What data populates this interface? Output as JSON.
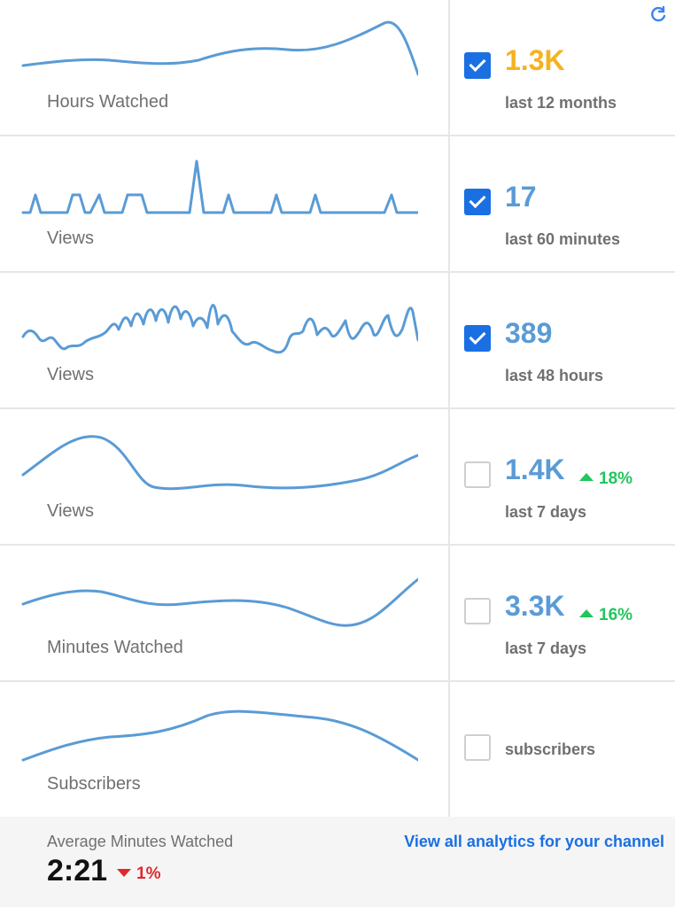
{
  "colors": {
    "accent_blue": "#5a9bd5",
    "highlight_gold": "#f5b21f",
    "checkbox_blue": "#1a6fe3",
    "positive_green": "#22c55e",
    "negative_red": "#e0282e",
    "link_blue": "#1a6fe3"
  },
  "header": {
    "refresh_icon": "refresh-icon"
  },
  "metrics": [
    {
      "label": "Hours Watched",
      "value": "1.3K",
      "period": "last 12 months",
      "checked": true,
      "change": ""
    },
    {
      "label": "Views",
      "value": "17",
      "period": "last 60 minutes",
      "checked": true,
      "change": ""
    },
    {
      "label": "Views",
      "value": "389",
      "period": "last 48 hours",
      "checked": true,
      "change": ""
    },
    {
      "label": "Views",
      "value": "1.4K",
      "period": "last 7 days",
      "checked": false,
      "change": "18%"
    },
    {
      "label": "Minutes Watched",
      "value": "3.3K",
      "period": "last 7 days",
      "checked": false,
      "change": "16%"
    },
    {
      "label": "Subscribers",
      "value": "",
      "period": "subscribers",
      "checked": false,
      "change": ""
    }
  ],
  "footer": {
    "avg_label": "Average Minutes Watched",
    "avg_value": "2:21",
    "avg_change": "1%",
    "view_all_link": "View all analytics for your channel"
  }
}
